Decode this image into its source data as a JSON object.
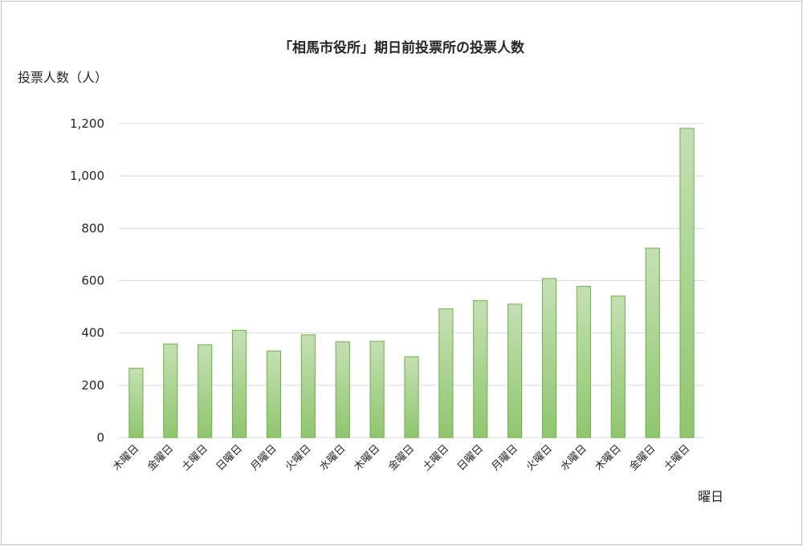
{
  "chart_data": {
    "type": "bar",
    "title": "「相馬市役所」期日前投票所の投票人数",
    "ylabel": "投票人数（人）",
    "xlabel": "曜日",
    "categories": [
      "木曜日",
      "金曜日",
      "土曜日",
      "日曜日",
      "月曜日",
      "火曜日",
      "水曜日",
      "木曜日",
      "金曜日",
      "土曜日",
      "日曜日",
      "月曜日",
      "火曜日",
      "水曜日",
      "木曜日",
      "金曜日",
      "土曜日"
    ],
    "values": [
      265,
      358,
      355,
      410,
      331,
      393,
      366,
      368,
      309,
      492,
      524,
      510,
      608,
      578,
      541,
      724,
      1182
    ],
    "ylim": [
      0,
      1200
    ],
    "yticks": [
      0,
      200,
      400,
      600,
      800,
      1000,
      1200
    ],
    "ytick_labels": [
      "0",
      "200",
      "400",
      "600",
      "800",
      "1,000",
      "1,200"
    ],
    "grid": true,
    "legend": "none",
    "colors": {
      "bar_fill_top": "#c5e0b4",
      "bar_fill_bottom": "#8fc66e",
      "bar_stroke": "#70ad47",
      "grid": "#d9d9d9",
      "text": "#262626"
    }
  }
}
